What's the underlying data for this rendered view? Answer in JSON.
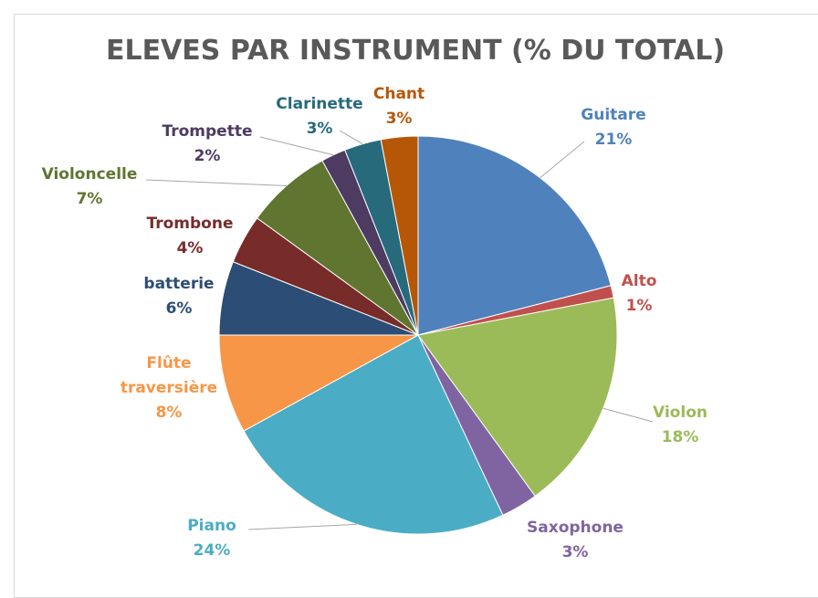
{
  "chart_data": {
    "type": "pie",
    "title": "ELEVES PAR INSTRUMENT (% DU TOTAL)",
    "categories": [
      "Guitare",
      "Alto",
      "Violon",
      "Saxophone",
      "Piano",
      "Flûte traversière",
      "batterie",
      "Trombone",
      "Violoncelle",
      "Trompette",
      "Clarinette",
      "Chant"
    ],
    "values": [
      21,
      1,
      18,
      3,
      24,
      8,
      6,
      4,
      7,
      2,
      3,
      3
    ],
    "value_labels": [
      "21%",
      "1%",
      "18%",
      "3%",
      "24%",
      "8%",
      "6%",
      "4%",
      "7%",
      "2%",
      "3%",
      "3%"
    ],
    "colors": [
      "#4f81bd",
      "#c0504d",
      "#9bbb59",
      "#8064a2",
      "#4bacc6",
      "#f79646",
      "#2c4d75",
      "#772c2a",
      "#5f7530",
      "#4d3b62",
      "#276a7c",
      "#b65708"
    ]
  }
}
